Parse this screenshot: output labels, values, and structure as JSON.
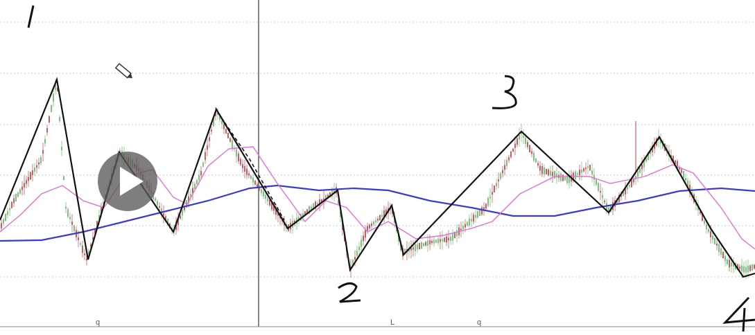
{
  "chart": {
    "x_tick_labels": [
      "q",
      "L",
      "q"
    ],
    "annotations": [
      "1",
      "2",
      "3",
      "4"
    ]
  },
  "colors": {
    "background": "#ffffff",
    "grid": "#c8c8c8",
    "candles_up": "#7fbf7f",
    "candles_down": "#c06060",
    "ma_fast": "#e070d0",
    "ma_slow": "#3a3ad0",
    "zigzag": "#111111",
    "divider": "#444444"
  },
  "player": {
    "play_icon": "play-icon"
  }
}
